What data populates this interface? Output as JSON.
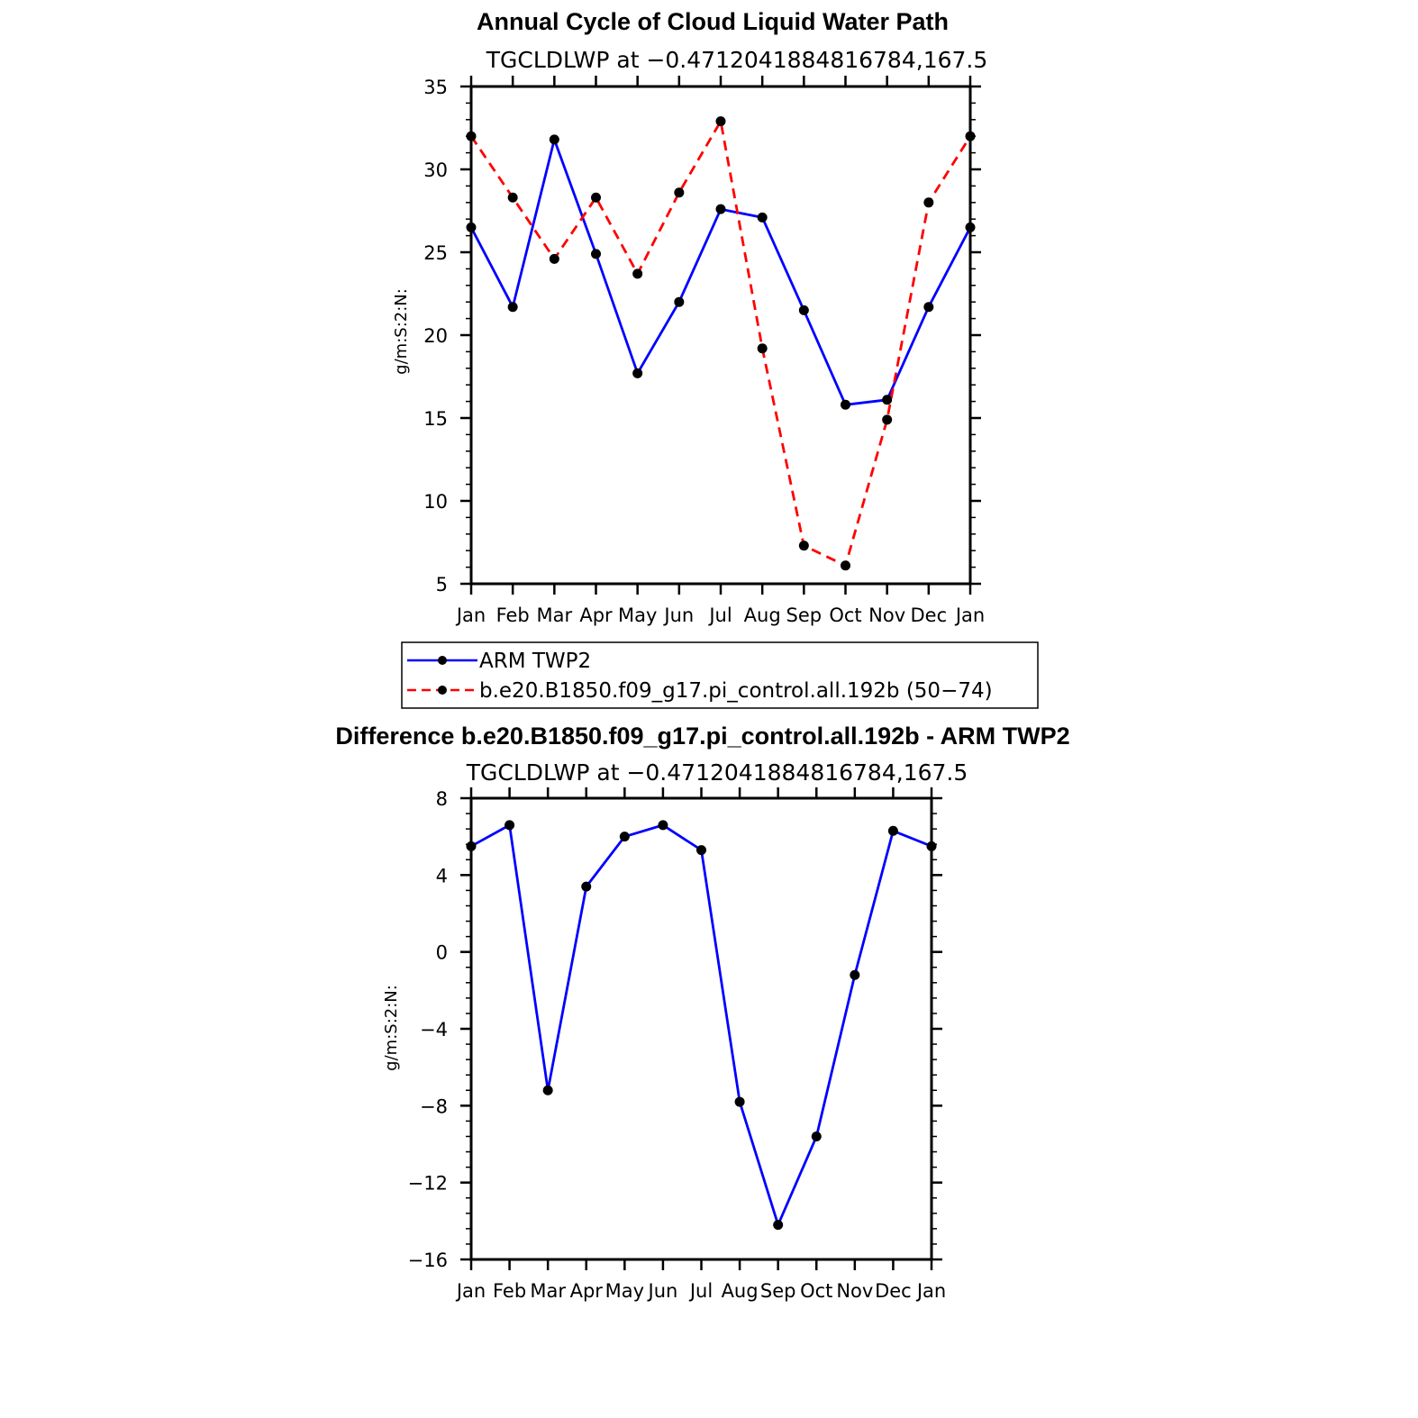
{
  "colors": {
    "series_obs": "#0000ff",
    "series_model": "#ff0000",
    "marker": "#000000",
    "axis": "#000000",
    "background": "#ffffff"
  },
  "chart_data": [
    {
      "type": "line",
      "title": "Annual Cycle of Cloud Liquid Water Path",
      "subtitle": "TGCLDLWP at −0.4712041884816784,167.5",
      "xlabel": "",
      "ylabel": "g/m:S:2:N:",
      "categories": [
        "Jan",
        "Feb",
        "Mar",
        "Apr",
        "May",
        "Jun",
        "Jul",
        "Aug",
        "Sep",
        "Oct",
        "Nov",
        "Dec",
        "Jan"
      ],
      "ylim": [
        5,
        35
      ],
      "yticks": [
        5,
        10,
        15,
        20,
        25,
        30,
        35
      ],
      "series": [
        {
          "name": "ARM TWP2",
          "style": "solid",
          "color": "#0000ff",
          "values": [
            26.5,
            21.7,
            31.8,
            24.9,
            17.7,
            22.0,
            27.6,
            27.1,
            21.5,
            15.8,
            16.1,
            21.7,
            26.5
          ]
        },
        {
          "name": "b.e20.B1850.f09_g17.pi_control.all.192b (50−74)",
          "style": "dashed",
          "color": "#ff0000",
          "values": [
            32.0,
            28.3,
            24.6,
            28.3,
            23.7,
            28.6,
            32.9,
            19.2,
            7.3,
            6.1,
            14.9,
            28.0,
            32.0
          ]
        }
      ],
      "legend": {
        "position": "bottom",
        "entries": [
          "ARM TWP2",
          "b.e20.B1850.f09_g17.pi_control.all.192b (50−74)"
        ]
      }
    },
    {
      "type": "line",
      "title": "Difference b.e20.B1850.f09_g17.pi_control.all.192b - ARM TWP2",
      "subtitle": "TGCLDLWP at −0.4712041884816784,167.5",
      "xlabel": "",
      "ylabel": "g/m:S:2:N:",
      "categories": [
        "Jan",
        "Feb",
        "Mar",
        "Apr",
        "May",
        "Jun",
        "Jul",
        "Aug",
        "Sep",
        "Oct",
        "Nov",
        "Dec",
        "Jan"
      ],
      "ylim": [
        -16,
        8
      ],
      "yticks": [
        -16,
        -12,
        -8,
        -4,
        0,
        4,
        8
      ],
      "ytick_labels": [
        "−16",
        "−12",
        "−8",
        "−4",
        "0",
        "4",
        "8"
      ],
      "series": [
        {
          "name": "Difference",
          "style": "solid",
          "color": "#0000ff",
          "values": [
            5.5,
            6.6,
            -7.2,
            3.4,
            6.0,
            6.6,
            5.3,
            -7.8,
            -14.2,
            -9.6,
            -1.2,
            6.3,
            5.5
          ]
        }
      ]
    }
  ]
}
